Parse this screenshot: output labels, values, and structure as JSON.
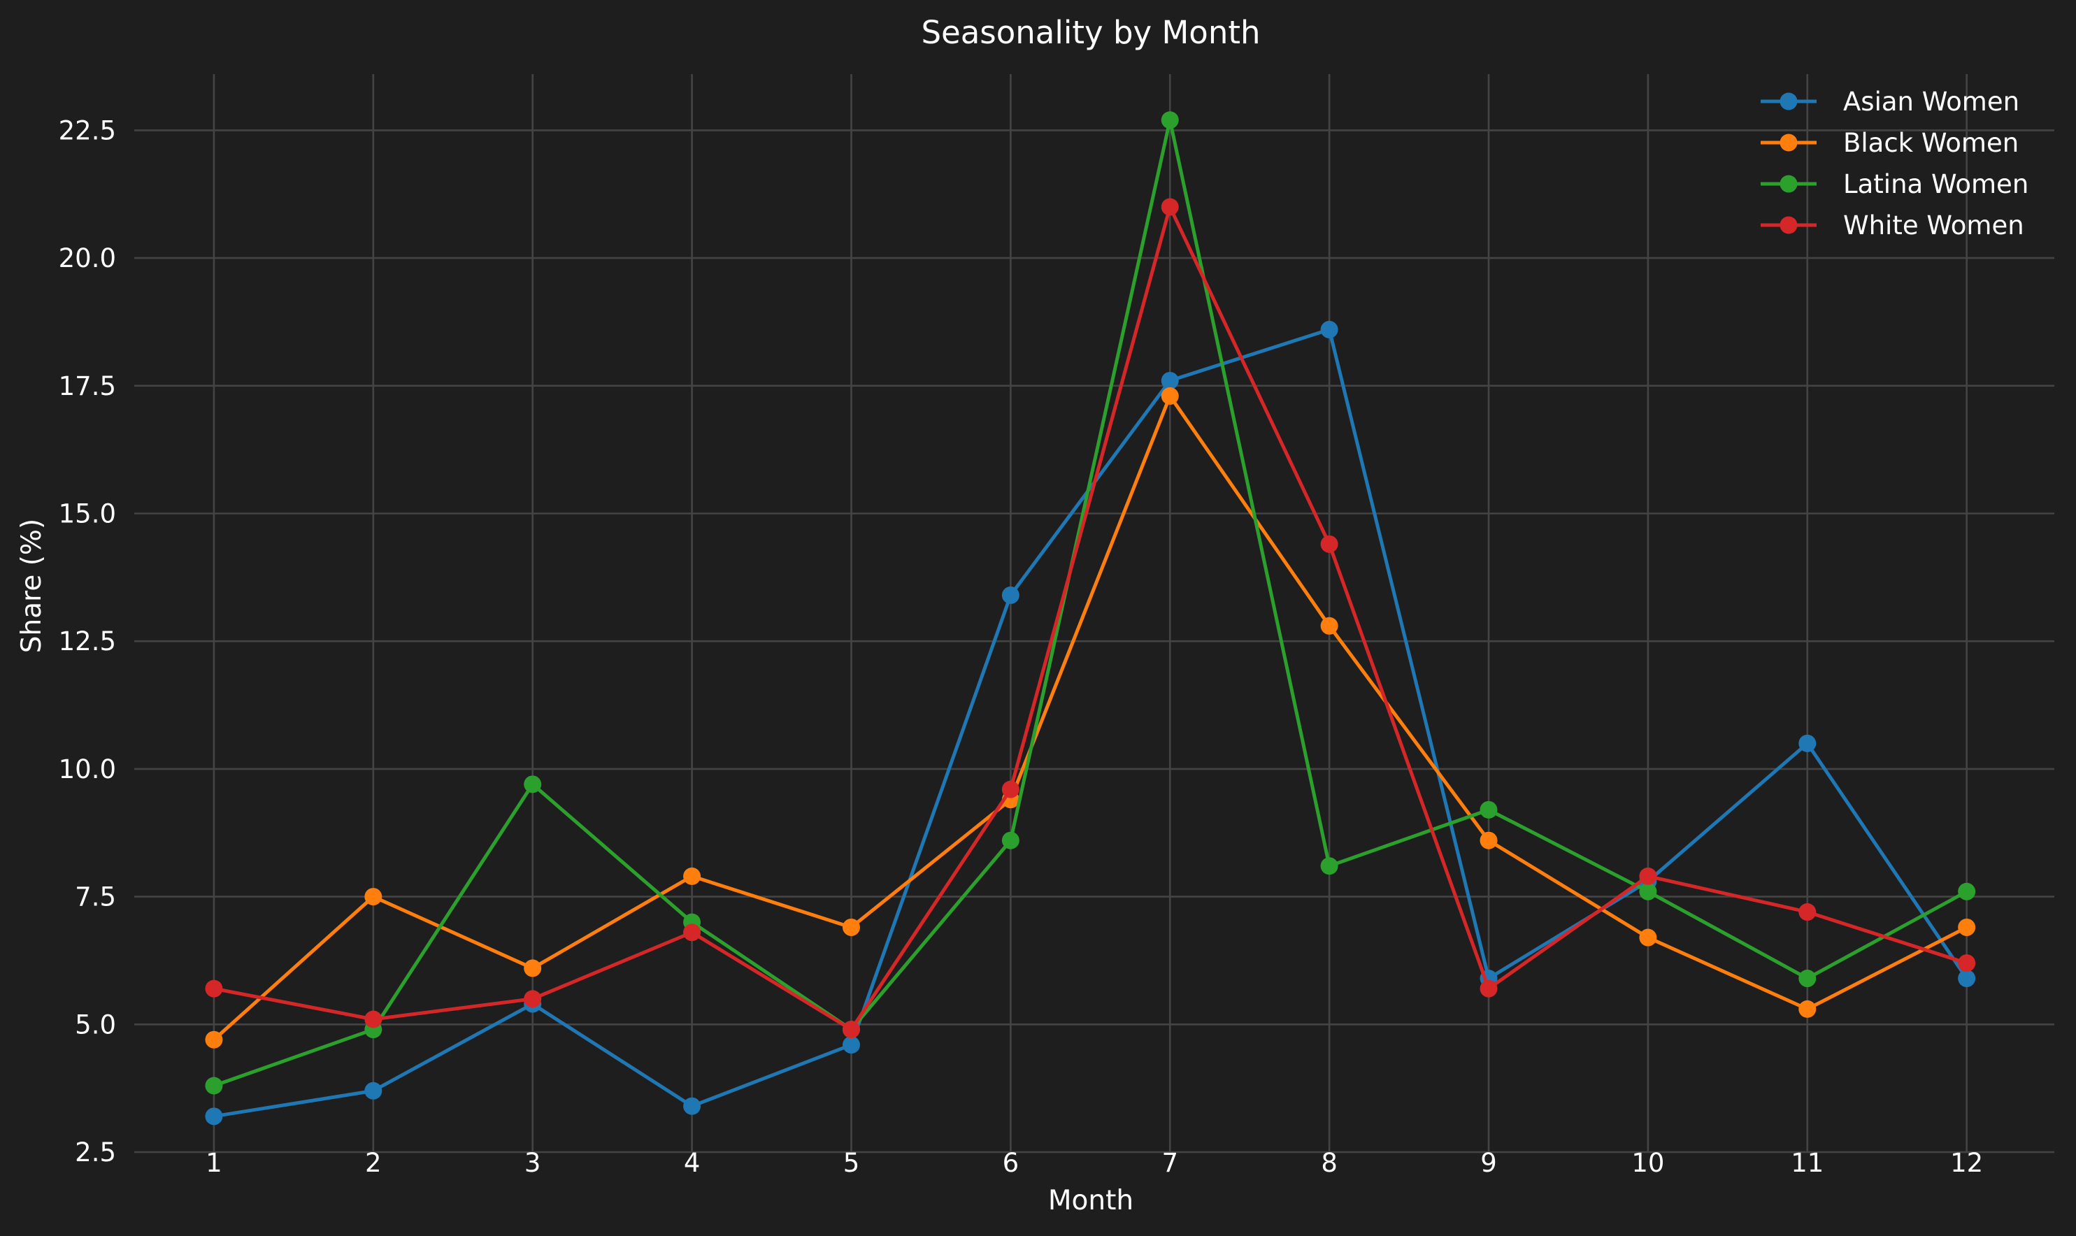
{
  "chart_data": {
    "type": "line",
    "title": "Seasonality by Month",
    "xlabel": "Month",
    "ylabel": "Share (%)",
    "x": [
      1,
      2,
      3,
      4,
      5,
      6,
      7,
      8,
      9,
      10,
      11,
      12
    ],
    "x_ticks": [
      "1",
      "2",
      "3",
      "4",
      "5",
      "6",
      "7",
      "8",
      "9",
      "10",
      "11",
      "12"
    ],
    "xlim": [
      0.5,
      12.55
    ],
    "ylim": [
      2.5,
      23.6
    ],
    "y_ticks": [
      2.5,
      5.0,
      7.5,
      10.0,
      12.5,
      15.0,
      17.5,
      20.0,
      22.5
    ],
    "y_tick_labels": [
      "2.5",
      "5.0",
      "7.5",
      "10.0",
      "12.5",
      "15.0",
      "17.5",
      "20.0",
      "22.5"
    ],
    "grid": true,
    "legend_position": "top-right",
    "series": [
      {
        "name": "Asian Women",
        "color": "#1f77b4",
        "values": [
          3.2,
          3.7,
          5.4,
          3.4,
          4.6,
          13.4,
          17.6,
          18.6,
          5.9,
          7.8,
          10.5,
          5.9
        ]
      },
      {
        "name": "Black Women",
        "color": "#ff7f0e",
        "values": [
          4.7,
          7.5,
          6.1,
          7.9,
          6.9,
          9.4,
          17.3,
          12.8,
          8.6,
          6.7,
          5.3,
          6.9
        ]
      },
      {
        "name": "Latina Women",
        "color": "#2ca02c",
        "values": [
          3.8,
          4.9,
          9.7,
          7.0,
          4.9,
          8.6,
          22.7,
          8.1,
          9.2,
          7.6,
          5.9,
          7.6
        ]
      },
      {
        "name": "White Women",
        "color": "#d62728",
        "values": [
          5.7,
          5.1,
          5.5,
          6.8,
          4.9,
          9.6,
          21.0,
          14.4,
          5.7,
          7.9,
          7.2,
          6.2
        ]
      }
    ]
  }
}
